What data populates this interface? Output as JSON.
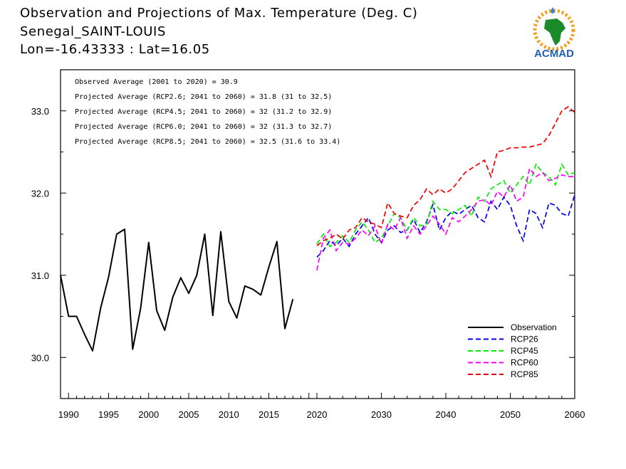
{
  "header": {
    "line1": "Observation and Projections of Max. Temperature (Deg. C)",
    "line2": "Senegal_SAINT-LOUIS",
    "line3": "Lon=-16.43333 : Lat=16.05"
  },
  "logo": {
    "text": "ACMAD",
    "icon": "africa-map-logo"
  },
  "colors": {
    "Observation": "#000000",
    "RCP26": "#0000ee",
    "RCP45": "#00ee00",
    "RCP60": "#ff00ff",
    "RCP85": "#ee0000"
  },
  "chart_data": {
    "type": "line",
    "ylim": [
      29.5,
      33.5
    ],
    "yticks": [
      30.0,
      31.0,
      32.0,
      33.0
    ],
    "ytick_labels": [
      "30.0",
      "31.0",
      "32.0",
      "33.0"
    ],
    "xticks_obs": [
      1990,
      1995,
      2000,
      2005,
      2010,
      2015,
      2020
    ],
    "xticks_proj": [
      2020,
      2030,
      2040,
      2050,
      2060
    ],
    "annotations": [
      "Observed Average (2001 to 2020) = 30.9",
      "Projected Average (RCP2.6; 2041 to 2060) = 31.8 (31 to 32.5)",
      "Projected Average (RCP4.5; 2041 to 2060) = 32 (31.2 to 32.9)",
      "Projected Average (RCP6.0; 2041 to 2060) = 32 (31.3 to 32.7)",
      "Projected Average (RCP8.5; 2041 to 2060) = 32.5 (31.6 to 33.4)"
    ],
    "legend": [
      "Observation",
      "RCP26",
      "RCP45",
      "RCP60",
      "RCP85"
    ],
    "legend_position": "bottom-right",
    "observation": {
      "name": "Observation",
      "x": [
        1989,
        1990,
        1991,
        1992,
        1993,
        1994,
        1995,
        1996,
        1997,
        1998,
        1999,
        2000,
        2001,
        2002,
        2003,
        2004,
        2005,
        2006,
        2007,
        2008,
        2009,
        2010,
        2011,
        2012,
        2013,
        2014,
        2015,
        2016,
        2017,
        2018,
        2019,
        2020
      ],
      "y": [
        31.0,
        30.5,
        30.5,
        30.28,
        30.08,
        30.6,
        30.98,
        31.5,
        31.56,
        30.1,
        30.6,
        31.4,
        30.57,
        30.33,
        30.73,
        30.97,
        30.78,
        31.0,
        31.5,
        30.51,
        31.53,
        30.68,
        30.48,
        30.87,
        30.83,
        30.76,
        31.1,
        31.41,
        30.35,
        30.71,
        null,
        null
      ]
    },
    "projections": {
      "x": [
        2020,
        2021,
        2022,
        2023,
        2024,
        2025,
        2026,
        2027,
        2028,
        2029,
        2030,
        2031,
        2032,
        2033,
        2034,
        2035,
        2036,
        2037,
        2038,
        2039,
        2040,
        2041,
        2042,
        2043,
        2044,
        2045,
        2046,
        2047,
        2048,
        2049,
        2050,
        2051,
        2052,
        2053,
        2054,
        2055,
        2056,
        2057,
        2058,
        2059,
        2060
      ],
      "series": [
        {
          "name": "RCP26",
          "values": [
            31.22,
            31.3,
            31.42,
            31.36,
            31.45,
            31.35,
            31.5,
            31.6,
            31.7,
            31.5,
            31.4,
            31.55,
            31.6,
            31.52,
            31.55,
            31.68,
            31.52,
            31.65,
            31.86,
            31.55,
            31.7,
            31.78,
            31.74,
            31.8,
            31.85,
            31.7,
            31.65,
            31.9,
            31.8,
            31.95,
            31.85,
            31.6,
            31.42,
            31.8,
            31.75,
            31.58,
            31.88,
            31.85,
            31.75,
            31.72,
            31.98
          ]
        },
        {
          "name": "RCP45",
          "values": [
            31.38,
            31.5,
            31.35,
            31.4,
            31.48,
            31.4,
            31.55,
            31.65,
            31.55,
            31.4,
            31.45,
            31.6,
            31.75,
            31.7,
            31.55,
            31.7,
            31.6,
            31.62,
            31.9,
            31.8,
            31.8,
            31.75,
            31.8,
            31.85,
            31.72,
            31.95,
            31.9,
            32.05,
            32.1,
            32.15,
            32.0,
            32.1,
            32.2,
            32.1,
            32.35,
            32.25,
            32.2,
            32.1,
            32.35,
            32.22,
            32.25
          ]
        },
        {
          "name": "RCP60",
          "values": [
            31.06,
            31.45,
            31.55,
            31.3,
            31.4,
            31.38,
            31.45,
            31.55,
            31.48,
            31.6,
            31.38,
            31.62,
            31.55,
            31.7,
            31.45,
            31.6,
            31.5,
            31.6,
            31.72,
            31.62,
            31.5,
            31.7,
            31.65,
            31.72,
            31.8,
            31.9,
            31.92,
            31.85,
            32.02,
            31.95,
            32.1,
            31.9,
            31.95,
            32.3,
            32.2,
            32.25,
            32.15,
            32.18,
            32.22,
            32.2,
            32.2
          ]
        },
        {
          "name": "RCP85",
          "values": [
            31.36,
            31.42,
            31.45,
            31.5,
            31.44,
            31.55,
            31.58,
            31.7,
            31.65,
            31.62,
            31.58,
            31.88,
            31.75,
            31.72,
            31.7,
            31.85,
            31.92,
            32.05,
            31.98,
            32.05,
            32.0,
            32.05,
            32.15,
            32.25,
            32.3,
            32.35,
            32.4,
            32.2,
            32.5,
            32.52,
            32.55,
            32.55,
            32.56,
            32.56,
            32.58,
            32.6,
            32.7,
            32.85,
            33.0,
            33.05,
            32.98
          ]
        }
      ]
    }
  }
}
